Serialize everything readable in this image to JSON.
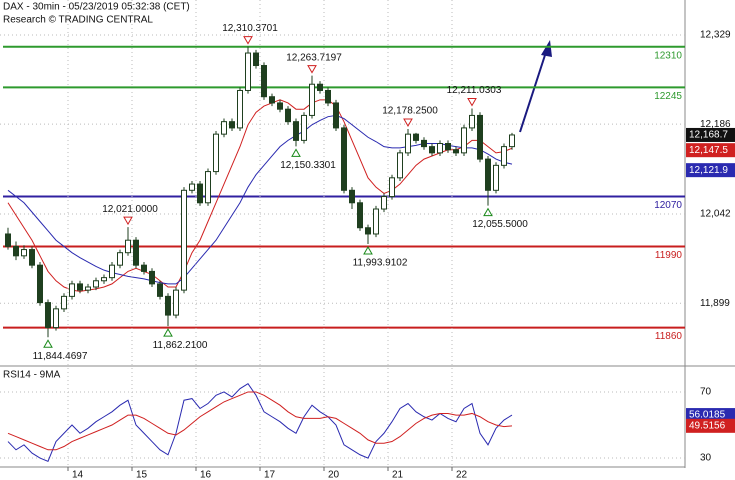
{
  "chart_data": [
    {
      "type": "candlestick",
      "title": "DAX - 30min - 05/23/2019 05:32:38 (CET)",
      "subtitle": "Research © TRADING CENTRAL",
      "open": [
        12010,
        11990,
        11975,
        11985,
        11960,
        11900,
        11860,
        11890,
        11910,
        11930,
        11920,
        11925,
        11935,
        11940,
        11960,
        11980,
        12000,
        11960,
        11950,
        11930,
        11910,
        11880,
        11920,
        12080,
        12090,
        12060,
        12110,
        12170,
        12190,
        12180,
        12240,
        12300,
        12280,
        12230,
        12220,
        12210,
        12190,
        12160,
        12200,
        12250,
        12240,
        12220,
        12180,
        12080,
        12060,
        12020,
        12010,
        12050,
        12070,
        12100,
        12140,
        12170,
        12160,
        12150,
        12140,
        12155,
        12145,
        12140,
        12180,
        12200,
        12130,
        12080,
        12120,
        12150
      ],
      "high": [
        12020,
        11998,
        11992,
        11990,
        11965,
        11905,
        11895,
        11915,
        11935,
        11935,
        11930,
        11940,
        11945,
        11965,
        11985,
        12021,
        12005,
        11965,
        11955,
        11935,
        11915,
        11925,
        12085,
        12095,
        12095,
        12115,
        12175,
        12195,
        12195,
        12245,
        12310.3701,
        12305,
        12285,
        12235,
        12225,
        12215,
        12195,
        12205,
        12263.7197,
        12255,
        12245,
        12225,
        12185,
        12085,
        12065,
        12025,
        12055,
        12075,
        12105,
        12145,
        12178.25,
        12172,
        12165,
        12155,
        12160,
        12160,
        12150,
        12185,
        12211.0303,
        12205,
        12135,
        12125,
        12155,
        12172
      ],
      "low": [
        11985,
        11968,
        11970,
        11955,
        11895,
        11844.4697,
        11855,
        11885,
        11905,
        11915,
        11915,
        11920,
        11930,
        11935,
        11955,
        11975,
        11955,
        11945,
        11925,
        11905,
        11862.21,
        11875,
        11915,
        12075,
        12055,
        12055,
        12105,
        12165,
        12175,
        12175,
        12235,
        12275,
        12225,
        12215,
        12205,
        12185,
        12150.3301,
        12155,
        12195,
        12235,
        12215,
        12175,
        12075,
        12050,
        12015,
        11993.9102,
        12005,
        12045,
        12065,
        12095,
        12135,
        12155,
        12145,
        12135,
        12135,
        12140,
        12135,
        12135,
        12175,
        12125,
        12055.5,
        12075,
        12115,
        12145
      ],
      "close": [
        11990,
        11975,
        11985,
        11960,
        11900,
        11860,
        11890,
        11910,
        11930,
        11920,
        11925,
        11935,
        11940,
        11960,
        11980,
        12000,
        11960,
        11950,
        11930,
        11910,
        11880,
        11920,
        12080,
        12090,
        12060,
        12110,
        12170,
        12190,
        12180,
        12240,
        12300,
        12280,
        12230,
        12220,
        12210,
        12190,
        12160,
        12200,
        12250,
        12240,
        12220,
        12180,
        12080,
        12060,
        12020,
        12010,
        12050,
        12070,
        12100,
        12140,
        12170,
        12160,
        12150,
        12140,
        12155,
        12145,
        12140,
        12180,
        12200,
        12130,
        12080,
        12120,
        12150,
        12168.7
      ],
      "last_label": "12,168.7",
      "up_color": "#ffffff",
      "down_color": "#1f3f1f",
      "wick_color": "#1f3f1f",
      "series": [
        {
          "color": "#d02020",
          "last_label": "12,147.5",
          "values": [
            12060,
            12040,
            12020,
            12000,
            11975,
            11950,
            11935,
            11925,
            11920,
            11918,
            11920,
            11922,
            11925,
            11930,
            11940,
            11950,
            11955,
            11950,
            11945,
            11935,
            11925,
            11925,
            11950,
            11980,
            12000,
            12030,
            12060,
            12090,
            12120,
            12150,
            12185,
            12205,
            12215,
            12220,
            12225,
            12220,
            12210,
            12210,
            12220,
            12225,
            12225,
            12215,
            12190,
            12160,
            12130,
            12100,
            12085,
            12075,
            12080,
            12090,
            12105,
            12120,
            12130,
            12135,
            12140,
            12145,
            12145,
            12150,
            12160,
            12160,
            12150,
            12140,
            12142,
            12147.5
          ]
        },
        {
          "color": "#2a2ab0",
          "last_label": "12,121.9",
          "values": [
            12080,
            12070,
            12060,
            12045,
            12030,
            12015,
            12000,
            11990,
            11980,
            11972,
            11965,
            11958,
            11952,
            11948,
            11945,
            11942,
            11940,
            11938,
            11935,
            11932,
            11930,
            11930,
            11940,
            11955,
            11970,
            11985,
            12000,
            12020,
            12040,
            12060,
            12085,
            12105,
            12120,
            12135,
            12150,
            12160,
            12168,
            12175,
            12185,
            12192,
            12198,
            12200,
            12195,
            12185,
            12175,
            12165,
            12158,
            12150,
            12148,
            12148,
            12150,
            12152,
            12155,
            12155,
            12155,
            12152,
            12150,
            12148,
            12148,
            12145,
            12138,
            12130,
            12125,
            12121.9
          ]
        }
      ],
      "levels": [
        {
          "value": 12310,
          "color": "#2e9a2e"
        },
        {
          "value": 12245,
          "color": "#2e9a2e"
        },
        {
          "value": 12070,
          "color": "#3020a0"
        },
        {
          "value": 11990,
          "color": "#c81e1e"
        },
        {
          "value": 11860,
          "color": "#c81e1e"
        }
      ],
      "annotations": [
        {
          "text": "12,310.3701",
          "index": 30,
          "kind": "high"
        },
        {
          "text": "12,263.7197",
          "index": 38,
          "kind": "high"
        },
        {
          "text": "12,178.2500",
          "index": 50,
          "kind": "high"
        },
        {
          "text": "12,211.0303",
          "index": 58,
          "kind": "high"
        },
        {
          "text": "12,021.0000",
          "index": 15,
          "kind": "high"
        },
        {
          "text": "11,844.4697",
          "index": 5,
          "kind": "low"
        },
        {
          "text": "11,862.2100",
          "index": 20,
          "kind": "low"
        },
        {
          "text": "12,150.3301",
          "index": 36,
          "kind": "low"
        },
        {
          "text": "11,993.9102",
          "index": 45,
          "kind": "low"
        },
        {
          "text": "12,055.5000",
          "index": 60,
          "kind": "low"
        }
      ],
      "ylim": [
        11800,
        12385
      ],
      "yticks": [
        {
          "value": 12329,
          "label": "12,329"
        },
        {
          "value": 12186,
          "label": "12,186"
        },
        {
          "value": 12042,
          "label": "12,042"
        },
        {
          "value": 11899,
          "label": "11,899"
        }
      ]
    },
    {
      "type": "line",
      "title": "RSI14 - 9MA",
      "categories": [
        null,
        null,
        null,
        null,
        null,
        null,
        null,
        null,
        "14",
        null,
        null,
        null,
        null,
        null,
        null,
        null,
        "15",
        null,
        null,
        null,
        null,
        null,
        null,
        null,
        "16",
        null,
        null,
        null,
        null,
        null,
        null,
        null,
        "17",
        null,
        null,
        null,
        null,
        null,
        null,
        null,
        "20",
        null,
        null,
        null,
        null,
        null,
        null,
        null,
        "21",
        null,
        null,
        null,
        null,
        null,
        null,
        null,
        "22",
        null,
        null,
        null,
        null,
        null,
        null,
        null
      ],
      "series": [
        {
          "color": "#2a2ab0",
          "values": [
            40,
            35,
            38,
            33,
            30,
            28,
            40,
            45,
            50,
            45,
            48,
            52,
            55,
            58,
            62,
            65,
            50,
            45,
            40,
            35,
            32,
            45,
            65,
            66,
            60,
            63,
            68,
            70,
            67,
            72,
            75,
            68,
            58,
            55,
            52,
            48,
            45,
            55,
            62,
            58,
            55,
            50,
            38,
            35,
            32,
            30,
            40,
            45,
            52,
            60,
            63,
            58,
            55,
            53,
            57,
            54,
            52,
            60,
            63,
            45,
            38,
            48,
            53,
            56.0185
          ]
        },
        {
          "color": "#d02020",
          "values": [
            45,
            43,
            41,
            39,
            37,
            35,
            35,
            37,
            40,
            42,
            44,
            46,
            48,
            50,
            53,
            56,
            56,
            54,
            51,
            48,
            45,
            44,
            47,
            51,
            55,
            58,
            61,
            64,
            66,
            68,
            70,
            70,
            68,
            65,
            62,
            58,
            55,
            54,
            54,
            54,
            55,
            54,
            51,
            48,
            45,
            41,
            39,
            39,
            40,
            43,
            47,
            51,
            54,
            56,
            57,
            57,
            56,
            56,
            57,
            55,
            52,
            50,
            49,
            49.5156
          ]
        }
      ],
      "ylim": [
        25.8,
        83.3
      ],
      "yticks": [
        70,
        30
      ]
    }
  ]
}
